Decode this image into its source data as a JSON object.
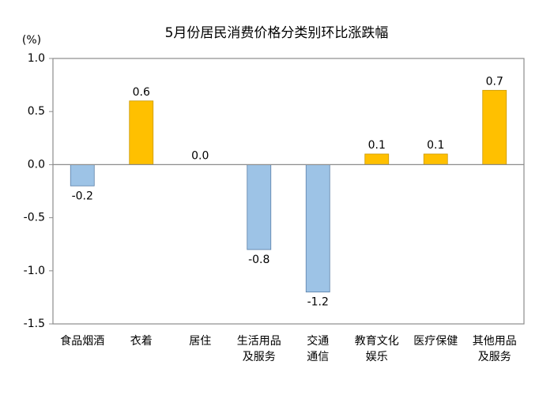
{
  "chart_data": {
    "type": "bar",
    "title": "5月份居民消费价格分类别环比涨跌幅",
    "y_unit": "(%)",
    "categories": [
      [
        "食品烟酒"
      ],
      [
        "衣着"
      ],
      [
        "居住"
      ],
      [
        "生活用品",
        "及服务"
      ],
      [
        "交通",
        "通信"
      ],
      [
        "教育文化",
        "娱乐"
      ],
      [
        "医疗保健"
      ],
      [
        "其他用品",
        "及服务"
      ]
    ],
    "values": [
      -0.2,
      0.6,
      0.0,
      -0.8,
      -1.2,
      0.1,
      0.1,
      0.7
    ],
    "value_labels": [
      "-0.2",
      "0.6",
      "0.0",
      "-0.8",
      "-1.2",
      "0.1",
      "0.1",
      "0.7"
    ],
    "positive_color": "#ffc000",
    "negative_color": "#9dc3e6",
    "ylim": [
      -1.5,
      1.0
    ],
    "yticks": [
      {
        "value": 1,
        "label": "1.0"
      },
      0.5,
      {
        "value": 0,
        "label": "0.0"
      },
      -0.5,
      {
        "value": -1,
        "label": "-1.0"
      },
      -1.5
    ]
  }
}
